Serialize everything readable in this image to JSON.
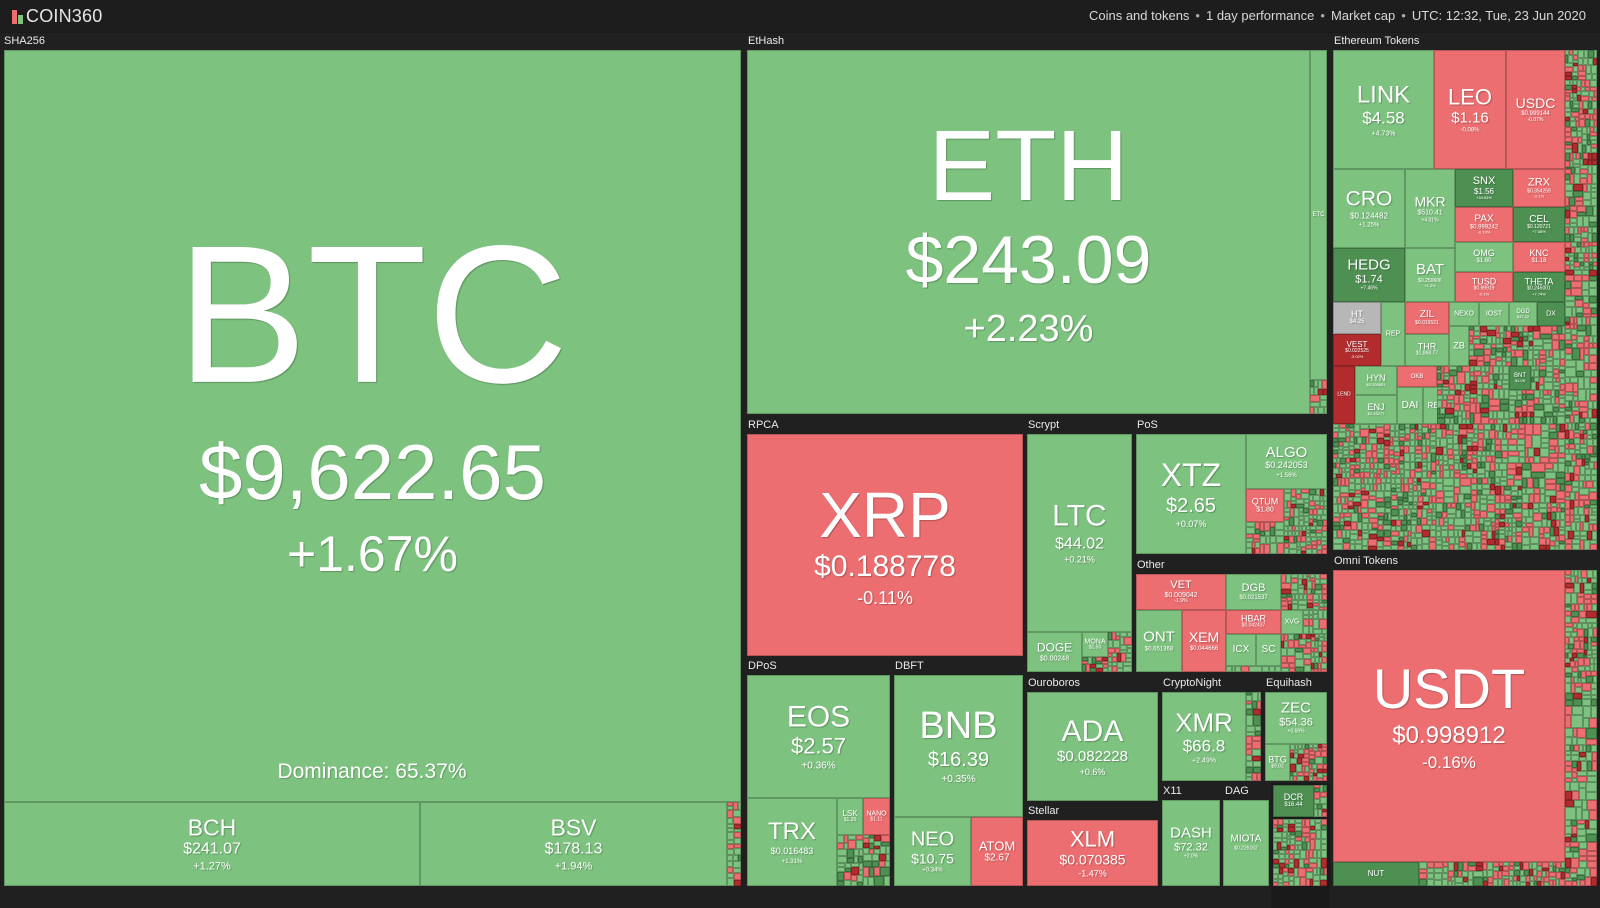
{
  "header": {
    "brand": "COIN360",
    "view": "Coins and tokens",
    "period": "1 day performance",
    "metric": "Market cap",
    "timestamp": "UTC: 12:32, Tue, 23 Jun 2020",
    "colors": {
      "up": "#7dc27f",
      "down": "#ec6e70",
      "strong_up": "#4e8f52",
      "strong_down": "#b22c2e"
    }
  },
  "groups": {
    "sha256": "SHA256",
    "ethash": "EtHash",
    "ethereum_tokens": "Ethereum Tokens",
    "rpca": "RPCA",
    "scrypt": "Scrypt",
    "pos": "PoS",
    "other": "Other",
    "omni_tokens": "Omni Tokens",
    "dpos": "DPoS",
    "dbft": "DBFT",
    "ouroboros": "Ouroboros",
    "cryptonight": "CryptoNight",
    "equihash": "Equihash",
    "stellar": "Stellar",
    "x11": "X11",
    "dag": "DAG"
  },
  "dominance": "Dominance: 65.37%",
  "tiles": {
    "btc": {
      "symbol": "BTC",
      "price": "$9,622.65",
      "change": "+1.67%"
    },
    "bch": {
      "symbol": "BCH",
      "price": "$241.07",
      "change": "+1.27%"
    },
    "bsv": {
      "symbol": "BSV",
      "price": "$178.13",
      "change": "+1.94%"
    },
    "eth": {
      "symbol": "ETH",
      "price": "$243.09",
      "change": "+2.23%"
    },
    "etc": {
      "symbol": "ETC",
      "price": "",
      "change": ""
    },
    "xrp": {
      "symbol": "XRP",
      "price": "$0.188778",
      "change": "-0.11%"
    },
    "ltc": {
      "symbol": "LTC",
      "price": "$44.02",
      "change": "+0.21%"
    },
    "doge": {
      "symbol": "DOGE",
      "price": "$0.00248",
      "change": ""
    },
    "mona": {
      "symbol": "MONA",
      "price": "$1.50",
      "change": ""
    },
    "xtz": {
      "symbol": "XTZ",
      "price": "$2.65",
      "change": "+0.07%"
    },
    "algo": {
      "symbol": "ALGO",
      "price": "$0.242053",
      "change": "+1.56%"
    },
    "qtum": {
      "symbol": "QTUM",
      "price": "$1.80",
      "change": ""
    },
    "vet": {
      "symbol": "VET",
      "price": "$0.009042",
      "change": "-1.9%"
    },
    "dgb": {
      "symbol": "DGB",
      "price": "$0.021537",
      "change": ""
    },
    "ont": {
      "symbol": "ONT",
      "price": "$0.651368",
      "change": ""
    },
    "xem": {
      "symbol": "XEM",
      "price": "$0.044666",
      "change": ""
    },
    "hbar": {
      "symbol": "HBAR",
      "price": "$0.042437",
      "change": ""
    },
    "xvg": {
      "symbol": "XVG",
      "price": "",
      "change": ""
    },
    "icx": {
      "symbol": "ICX",
      "price": "",
      "change": ""
    },
    "sc": {
      "symbol": "SC",
      "price": "",
      "change": ""
    },
    "eos": {
      "symbol": "EOS",
      "price": "$2.57",
      "change": "+0.36%"
    },
    "trx": {
      "symbol": "TRX",
      "price": "$0.016483",
      "change": "+1.31%"
    },
    "lsk": {
      "symbol": "LSK",
      "price": "$1.25",
      "change": ""
    },
    "nano": {
      "symbol": "NANO",
      "price": "$1.11",
      "change": ""
    },
    "bnb": {
      "symbol": "BNB",
      "price": "$16.39",
      "change": "+0.35%"
    },
    "neo": {
      "symbol": "NEO",
      "price": "$10.75",
      "change": "+0.34%"
    },
    "atom": {
      "symbol": "ATOM",
      "price": "$2.67",
      "change": ""
    },
    "ada": {
      "symbol": "ADA",
      "price": "$0.082228",
      "change": "+0.6%"
    },
    "xlm": {
      "symbol": "XLM",
      "price": "$0.070385",
      "change": "-1.47%"
    },
    "xmr": {
      "symbol": "XMR",
      "price": "$66.8",
      "change": "+2.49%"
    },
    "zec": {
      "symbol": "ZEC",
      "price": "$54.36",
      "change": "+3.69%"
    },
    "btg": {
      "symbol": "BTG",
      "price": "$9.02",
      "change": ""
    },
    "dash": {
      "symbol": "DASH",
      "price": "$72.32",
      "change": "+2.0%"
    },
    "miota": {
      "symbol": "MIOTA",
      "price": "$0.226162",
      "change": ""
    },
    "dcr": {
      "symbol": "DCR",
      "price": "$16.44",
      "change": ""
    },
    "usdt": {
      "symbol": "USDT",
      "price": "$0.998912",
      "change": "-0.16%"
    },
    "link": {
      "symbol": "LINK",
      "price": "$4.58",
      "change": "+4.73%"
    },
    "leo": {
      "symbol": "LEO",
      "price": "$1.16",
      "change": "-0.08%"
    },
    "usdc": {
      "symbol": "USDC",
      "price": "$0.999144",
      "change": "-0.07%"
    },
    "cro": {
      "symbol": "CRO",
      "price": "$0.124482",
      "change": "+1.25%"
    },
    "mkr": {
      "symbol": "MKR",
      "price": "$510.41",
      "change": "+4.01%"
    },
    "snx": {
      "symbol": "SNX",
      "price": "$1.56",
      "change": "+34.63%"
    },
    "zrx": {
      "symbol": "ZRX",
      "price": "$0.354259",
      "change": "-2.1%"
    },
    "pax": {
      "symbol": "PAX",
      "price": "$0.999242",
      "change": "-0.19%"
    },
    "cel": {
      "symbol": "CEL",
      "price": "$0.120721",
      "change": "+7.68%"
    },
    "hedg": {
      "symbol": "HEDG",
      "price": "$1.74",
      "change": "+7.46%"
    },
    "bat": {
      "symbol": "BAT",
      "price": "$0.250606",
      "change": "+1.2%"
    },
    "omg": {
      "symbol": "OMG",
      "price": "$1.60",
      "change": ""
    },
    "knc": {
      "symbol": "KNC",
      "price": "$1.18",
      "change": ""
    },
    "tusd": {
      "symbol": "TUSD",
      "price": "$0.99919",
      "change": "-0.1%"
    },
    "theta": {
      "symbol": "THETA",
      "price": "$0.245001",
      "change": "+7.74%"
    },
    "ht": {
      "symbol": "HT",
      "price": "$4.25",
      "change": ""
    },
    "rep": {
      "symbol": "REP",
      "price": "",
      "change": ""
    },
    "zil": {
      "symbol": "ZIL",
      "price": "$0.019521",
      "change": ""
    },
    "nexo": {
      "symbol": "NEXO",
      "price": "",
      "change": ""
    },
    "iost": {
      "symbol": "IOST",
      "price": "",
      "change": ""
    },
    "dgd": {
      "symbol": "DGD",
      "price": "$47.22",
      "change": ""
    },
    "dx": {
      "symbol": "DX",
      "price": "",
      "change": ""
    },
    "vest": {
      "symbol": "VEST",
      "price": "$0.022525",
      "change": "-3.02%"
    },
    "thr": {
      "symbol": "THR",
      "price": "$1,868.77",
      "change": ""
    },
    "zb": {
      "symbol": "ZB",
      "price": "",
      "change": ""
    },
    "hyn": {
      "symbol": "HYN",
      "price": "$0.326651",
      "change": ""
    },
    "okb": {
      "symbol": "OKB",
      "price": "",
      "change": ""
    },
    "bnt": {
      "symbol": "BNT",
      "price": "$1.09",
      "change": ""
    },
    "lend": {
      "symbol": "LEND",
      "price": "",
      "change": ""
    },
    "enj": {
      "symbol": "ENJ",
      "price": "$0.15277",
      "change": ""
    },
    "dai": {
      "symbol": "DAI",
      "price": "",
      "change": ""
    },
    "ren": {
      "symbol": "REN",
      "price": "",
      "change": ""
    },
    "nut": {
      "symbol": "NUT",
      "price": "",
      "change": ""
    }
  }
}
